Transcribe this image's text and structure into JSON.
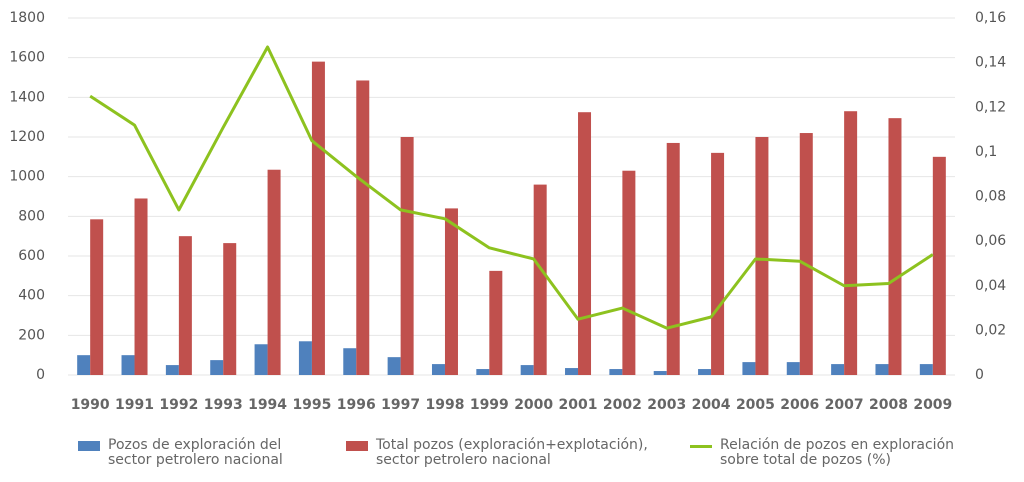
{
  "chart_data": {
    "type": "bar",
    "categories": [
      "1990",
      "1991",
      "1992",
      "1993",
      "1994",
      "1995",
      "1996",
      "1997",
      "1998",
      "1999",
      "2000",
      "2001",
      "2002",
      "2003",
      "2004",
      "2005",
      "2006",
      "2007",
      "2008",
      "2009"
    ],
    "series": [
      {
        "name": "Pozos de exploración del sector petrolero nacional",
        "color": "#4f81bd",
        "values": [
          100,
          100,
          50,
          75,
          155,
          170,
          135,
          90,
          55,
          30,
          50,
          35,
          30,
          20,
          30,
          65,
          65,
          55,
          55,
          55
        ]
      },
      {
        "name": "Total pozos (exploración+explotación), sector petrolero nacional",
        "color": "#c0504d",
        "values": [
          785,
          890,
          700,
          665,
          1035,
          1580,
          1485,
          1200,
          840,
          525,
          960,
          1325,
          1030,
          1170,
          1120,
          1200,
          1220,
          1330,
          1295,
          1100
        ]
      },
      {
        "name": "Relación de pozos en exploración sobre total de pozos (%)",
        "color": "#8dc21f",
        "type": "line",
        "axis": "y2",
        "values": [
          0.125,
          0.112,
          0.074,
          0.111,
          0.147,
          0.105,
          0.089,
          0.074,
          0.07,
          0.057,
          0.052,
          0.025,
          0.03,
          0.021,
          0.026,
          0.052,
          0.051,
          0.04,
          0.041,
          0.054
        ]
      }
    ],
    "ylim": [
      0,
      1800
    ],
    "yticks": [
      0,
      200,
      400,
      600,
      800,
      1000,
      1200,
      1400,
      1600,
      1800
    ],
    "y2lim": [
      0,
      0.16
    ],
    "y2ticks": [
      0,
      {
        "value": 0.02,
        "label": "0,02"
      },
      {
        "value": 0.04,
        "label": "0,04"
      },
      {
        "value": 0.06,
        "label": "0,06"
      },
      {
        "value": 0.08,
        "label": "0,08"
      },
      {
        "value": 0.1,
        "label": "0,1"
      },
      {
        "value": 0.12,
        "label": "0,12"
      },
      {
        "value": 0.14,
        "label": "0,14"
      },
      {
        "value": 0.16,
        "label": "0,16"
      }
    ],
    "grid": true
  }
}
